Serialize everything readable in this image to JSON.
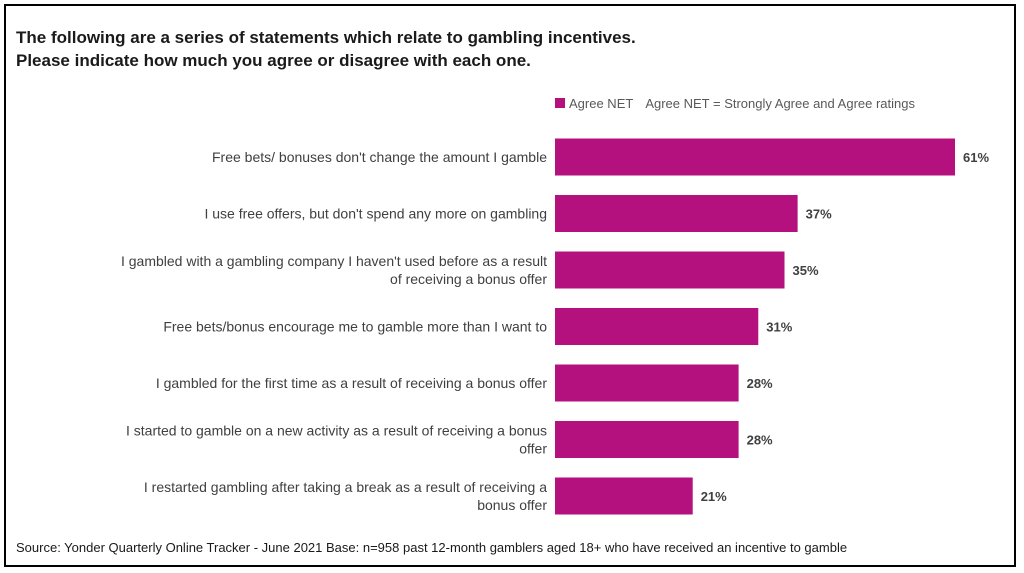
{
  "title_lines": [
    "The following are a series of statements which relate to gambling incentives.",
    "Please indicate how much you agree or disagree with each one."
  ],
  "legend": {
    "series_name": "Agree NET",
    "note": "Agree NET = Strongly Agree and Agree ratings",
    "color": "#b5117e"
  },
  "source": "Source: Yonder Quarterly Online Tracker - June 2021 Base: n=958 past 12-month gamblers aged 18+ who have received an incentive to gamble",
  "chart_data": {
    "type": "bar",
    "orientation": "horizontal",
    "title": "The following are a series of statements which relate to gambling incentives. Please indicate how much you agree or disagree with each one.",
    "categories": [
      [
        "Free bets/ bonuses don't change the amount I gamble"
      ],
      [
        "I use free offers, but don't spend any more on gambling"
      ],
      [
        "I gambled with a gambling company I haven't used before as a result",
        "of receiving a bonus offer"
      ],
      [
        "Free bets/bonus encourage me to gamble more than I want to"
      ],
      [
        "I gambled for the first time as a result of receiving a bonus offer"
      ],
      [
        "I started to gamble on a new activity as a result of receiving a bonus",
        "offer"
      ],
      [
        "I restarted gambling after taking a break as a result of receiving a",
        "bonus offer"
      ]
    ],
    "series": [
      {
        "name": "Agree NET",
        "values": [
          61,
          37,
          35,
          31,
          28,
          28,
          21
        ],
        "labels": [
          "61%",
          "37%",
          "35%",
          "31%",
          "28%",
          "28%",
          "21%"
        ],
        "color": "#b5117e"
      }
    ],
    "xlim": [
      0,
      65
    ],
    "grid": false,
    "legend_position": "top-right"
  }
}
